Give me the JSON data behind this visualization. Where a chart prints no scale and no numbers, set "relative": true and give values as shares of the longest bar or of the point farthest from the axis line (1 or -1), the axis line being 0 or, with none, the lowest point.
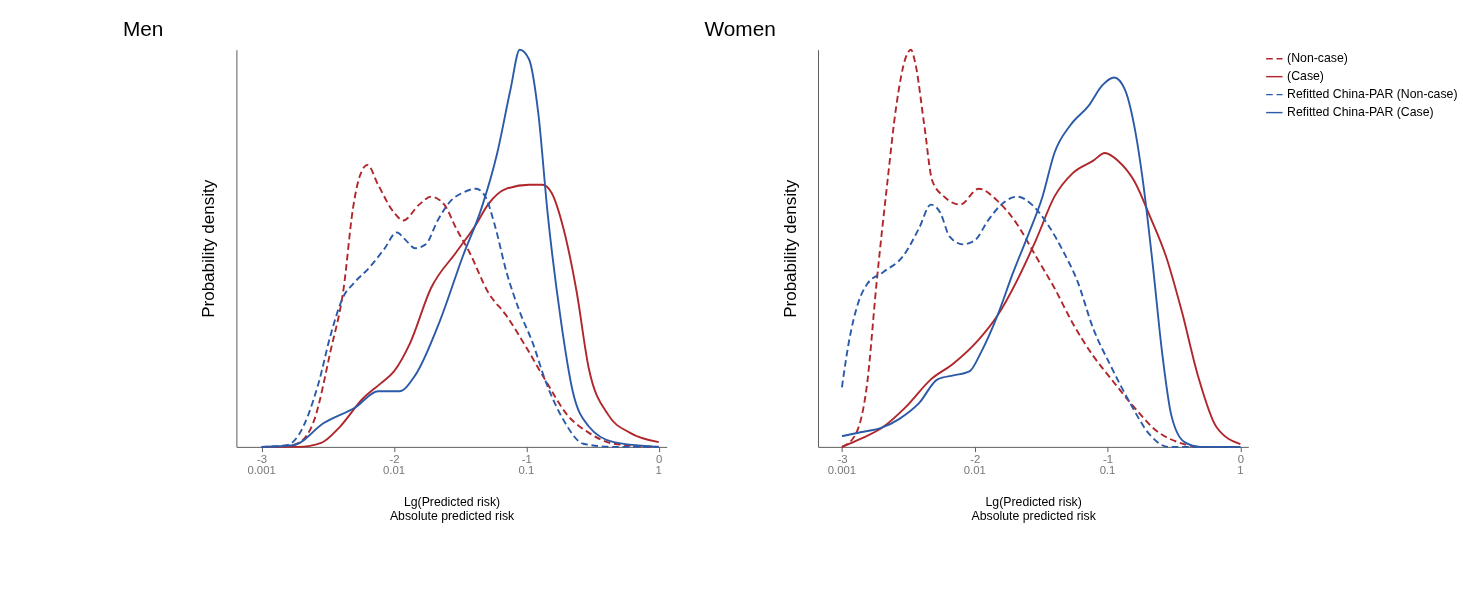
{
  "chart_data": [
    {
      "type": "line",
      "title": "Men",
      "xlabel": "Lg(Predicted risk)\nAbsolute predicted risk",
      "ylabel": "Probability density",
      "relative": true,
      "xlim": [
        -3.19,
        0.06
      ],
      "xticks": [
        -3,
        -2,
        -1,
        0
      ],
      "grid": false,
      "annotations": [
        "0.001",
        "0.01",
        "0.1",
        "1"
      ],
      "series": [
        {
          "color": "#b0262b",
          "line_style": "dashed",
          "x": [
            -2.84,
            -2.72,
            -2.6,
            -2.48,
            -2.38,
            -2.31,
            -2.26,
            -2.2,
            -2.12,
            -2.0,
            -1.93,
            -1.81,
            -1.72,
            -1.62,
            -1.53,
            -1.43,
            -1.29,
            -1.15,
            -1.0,
            -0.86,
            -0.69,
            -0.53,
            -0.34,
            0.0
          ],
          "values": [
            0,
            0.01,
            0.07,
            0.24,
            0.4,
            0.6,
            0.68,
            0.71,
            0.66,
            0.59,
            0.57,
            0.61,
            0.63,
            0.61,
            0.55,
            0.49,
            0.39,
            0.33,
            0.25,
            0.17,
            0.08,
            0.036,
            0.008,
            0
          ]
        },
        {
          "color": "#b0262b",
          "line_style": "solid",
          "x": [
            -3.0,
            -2.72,
            -2.55,
            -2.41,
            -2.24,
            -2.1,
            -2.0,
            -1.88,
            -1.72,
            -1.53,
            -1.38,
            -1.29,
            -1.15,
            -0.98,
            -0.88,
            -0.81,
            -0.72,
            -0.62,
            -0.53,
            -0.38,
            -0.22,
            0.0
          ],
          "values": [
            0,
            0,
            0.01,
            0.05,
            0.12,
            0.16,
            0.19,
            0.26,
            0.4,
            0.49,
            0.56,
            0.61,
            0.65,
            0.66,
            0.66,
            0.64,
            0.55,
            0.39,
            0.2,
            0.08,
            0.036,
            0.012
          ]
        },
        {
          "color": "#2b5aa8",
          "line_style": "dashed",
          "x": [
            -3.0,
            -2.81,
            -2.72,
            -2.57,
            -2.48,
            -2.38,
            -2.31,
            -2.19,
            -2.07,
            -1.98,
            -1.91,
            -1.84,
            -1.76,
            -1.67,
            -1.57,
            -1.48,
            -1.38,
            -1.31,
            -1.24,
            -1.15,
            -1.05,
            -0.95,
            -0.86,
            -0.72,
            -0.57,
            -0.34,
            0.0
          ],
          "values": [
            0,
            0.004,
            0.03,
            0.16,
            0.28,
            0.38,
            0.41,
            0.45,
            0.5,
            0.54,
            0.52,
            0.5,
            0.51,
            0.57,
            0.62,
            0.64,
            0.65,
            0.63,
            0.56,
            0.44,
            0.34,
            0.26,
            0.17,
            0.068,
            0.008,
            0,
            0
          ]
        },
        {
          "color": "#2b5aa8",
          "line_style": "solid",
          "x": [
            -3.0,
            -2.76,
            -2.53,
            -2.29,
            -2.12,
            -1.96,
            -1.84,
            -1.65,
            -1.48,
            -1.34,
            -1.22,
            -1.12,
            -1.05,
            -0.98,
            -0.91,
            -0.84,
            -0.74,
            -0.65,
            -0.53,
            -0.34,
            0.0
          ],
          "values": [
            0,
            0.004,
            0.06,
            0.1,
            0.14,
            0.14,
            0.18,
            0.32,
            0.48,
            0.6,
            0.74,
            0.9,
            1.0,
            0.976,
            0.84,
            0.59,
            0.32,
            0.14,
            0.052,
            0.012,
            0
          ]
        }
      ]
    },
    {
      "type": "line",
      "title": "Women",
      "xlabel": "Lg(Predicted risk)\nAbsolute predicted risk",
      "ylabel": "Probability density",
      "relative": true,
      "xlim": [
        -3.18,
        0.06
      ],
      "xticks": [
        -3,
        -2,
        -1,
        0
      ],
      "grid": false,
      "legend": "right",
      "annotations": [
        "0.001",
        "0.01",
        "0.1",
        "1"
      ],
      "series": [
        {
          "name": "(Non-case)",
          "color": "#b0262b",
          "line_style": "dashed",
          "x": [
            -3.0,
            -2.9,
            -2.81,
            -2.74,
            -2.66,
            -2.59,
            -2.52,
            -2.48,
            -2.45,
            -2.38,
            -2.32,
            -2.23,
            -2.11,
            -1.97,
            -1.83,
            -1.68,
            -1.54,
            -1.4,
            -1.26,
            -1.11,
            -0.97,
            -0.8,
            -0.63,
            -0.47,
            -0.3,
            0.0
          ],
          "values": [
            0,
            0.03,
            0.16,
            0.41,
            0.66,
            0.86,
            0.98,
            1.0,
            0.97,
            0.81,
            0.67,
            0.63,
            0.61,
            0.65,
            0.62,
            0.56,
            0.48,
            0.4,
            0.31,
            0.23,
            0.17,
            0.1,
            0.04,
            0.012,
            0,
            0
          ]
        },
        {
          "name": "(Case)",
          "color": "#b0262b",
          "line_style": "solid",
          "x": [
            -3.0,
            -2.86,
            -2.69,
            -2.52,
            -2.33,
            -2.16,
            -1.97,
            -1.83,
            -1.68,
            -1.54,
            -1.4,
            -1.26,
            -1.11,
            -1.02,
            -0.92,
            -0.8,
            -0.68,
            -0.56,
            -0.44,
            -0.32,
            -0.18,
            0.0
          ],
          "values": [
            0,
            0.02,
            0.05,
            0.1,
            0.17,
            0.21,
            0.27,
            0.33,
            0.42,
            0.52,
            0.63,
            0.69,
            0.72,
            0.74,
            0.72,
            0.67,
            0.58,
            0.48,
            0.34,
            0.18,
            0.05,
            0.007
          ]
        },
        {
          "name": "Refitted China-PAR (Non-case)",
          "color": "#2b5aa8",
          "line_style": "dashed",
          "x": [
            -3.0,
            -2.95,
            -2.88,
            -2.81,
            -2.69,
            -2.54,
            -2.42,
            -2.33,
            -2.26,
            -2.19,
            -2.09,
            -2.0,
            -1.9,
            -1.8,
            -1.68,
            -1.57,
            -1.45,
            -1.33,
            -1.23,
            -1.11,
            -0.97,
            -0.83,
            -0.68,
            -0.54,
            -0.3,
            0.0
          ],
          "values": [
            0.15,
            0.26,
            0.36,
            0.41,
            0.44,
            0.48,
            0.55,
            0.61,
            0.59,
            0.53,
            0.51,
            0.52,
            0.57,
            0.61,
            0.63,
            0.61,
            0.56,
            0.49,
            0.42,
            0.3,
            0.2,
            0.11,
            0.03,
            0,
            0,
            0
          ]
        },
        {
          "name": "Refitted China-PAR (Case)",
          "color": "#2b5aa8",
          "line_style": "solid",
          "x": [
            -3.0,
            -2.86,
            -2.71,
            -2.57,
            -2.42,
            -2.28,
            -2.16,
            -2.04,
            -1.95,
            -1.83,
            -1.71,
            -1.59,
            -1.49,
            -1.4,
            -1.28,
            -1.14,
            -1.04,
            -0.95,
            -0.87,
            -0.8,
            -0.73,
            -0.66,
            -0.59,
            -0.52,
            -0.42,
            -0.3,
            0.0
          ],
          "values": [
            0.027,
            0.037,
            0.047,
            0.07,
            0.11,
            0.17,
            0.18,
            0.19,
            0.24,
            0.33,
            0.44,
            0.54,
            0.63,
            0.74,
            0.81,
            0.86,
            0.91,
            0.93,
            0.9,
            0.81,
            0.66,
            0.46,
            0.24,
            0.08,
            0.012,
            0,
            0
          ]
        }
      ]
    }
  ]
}
